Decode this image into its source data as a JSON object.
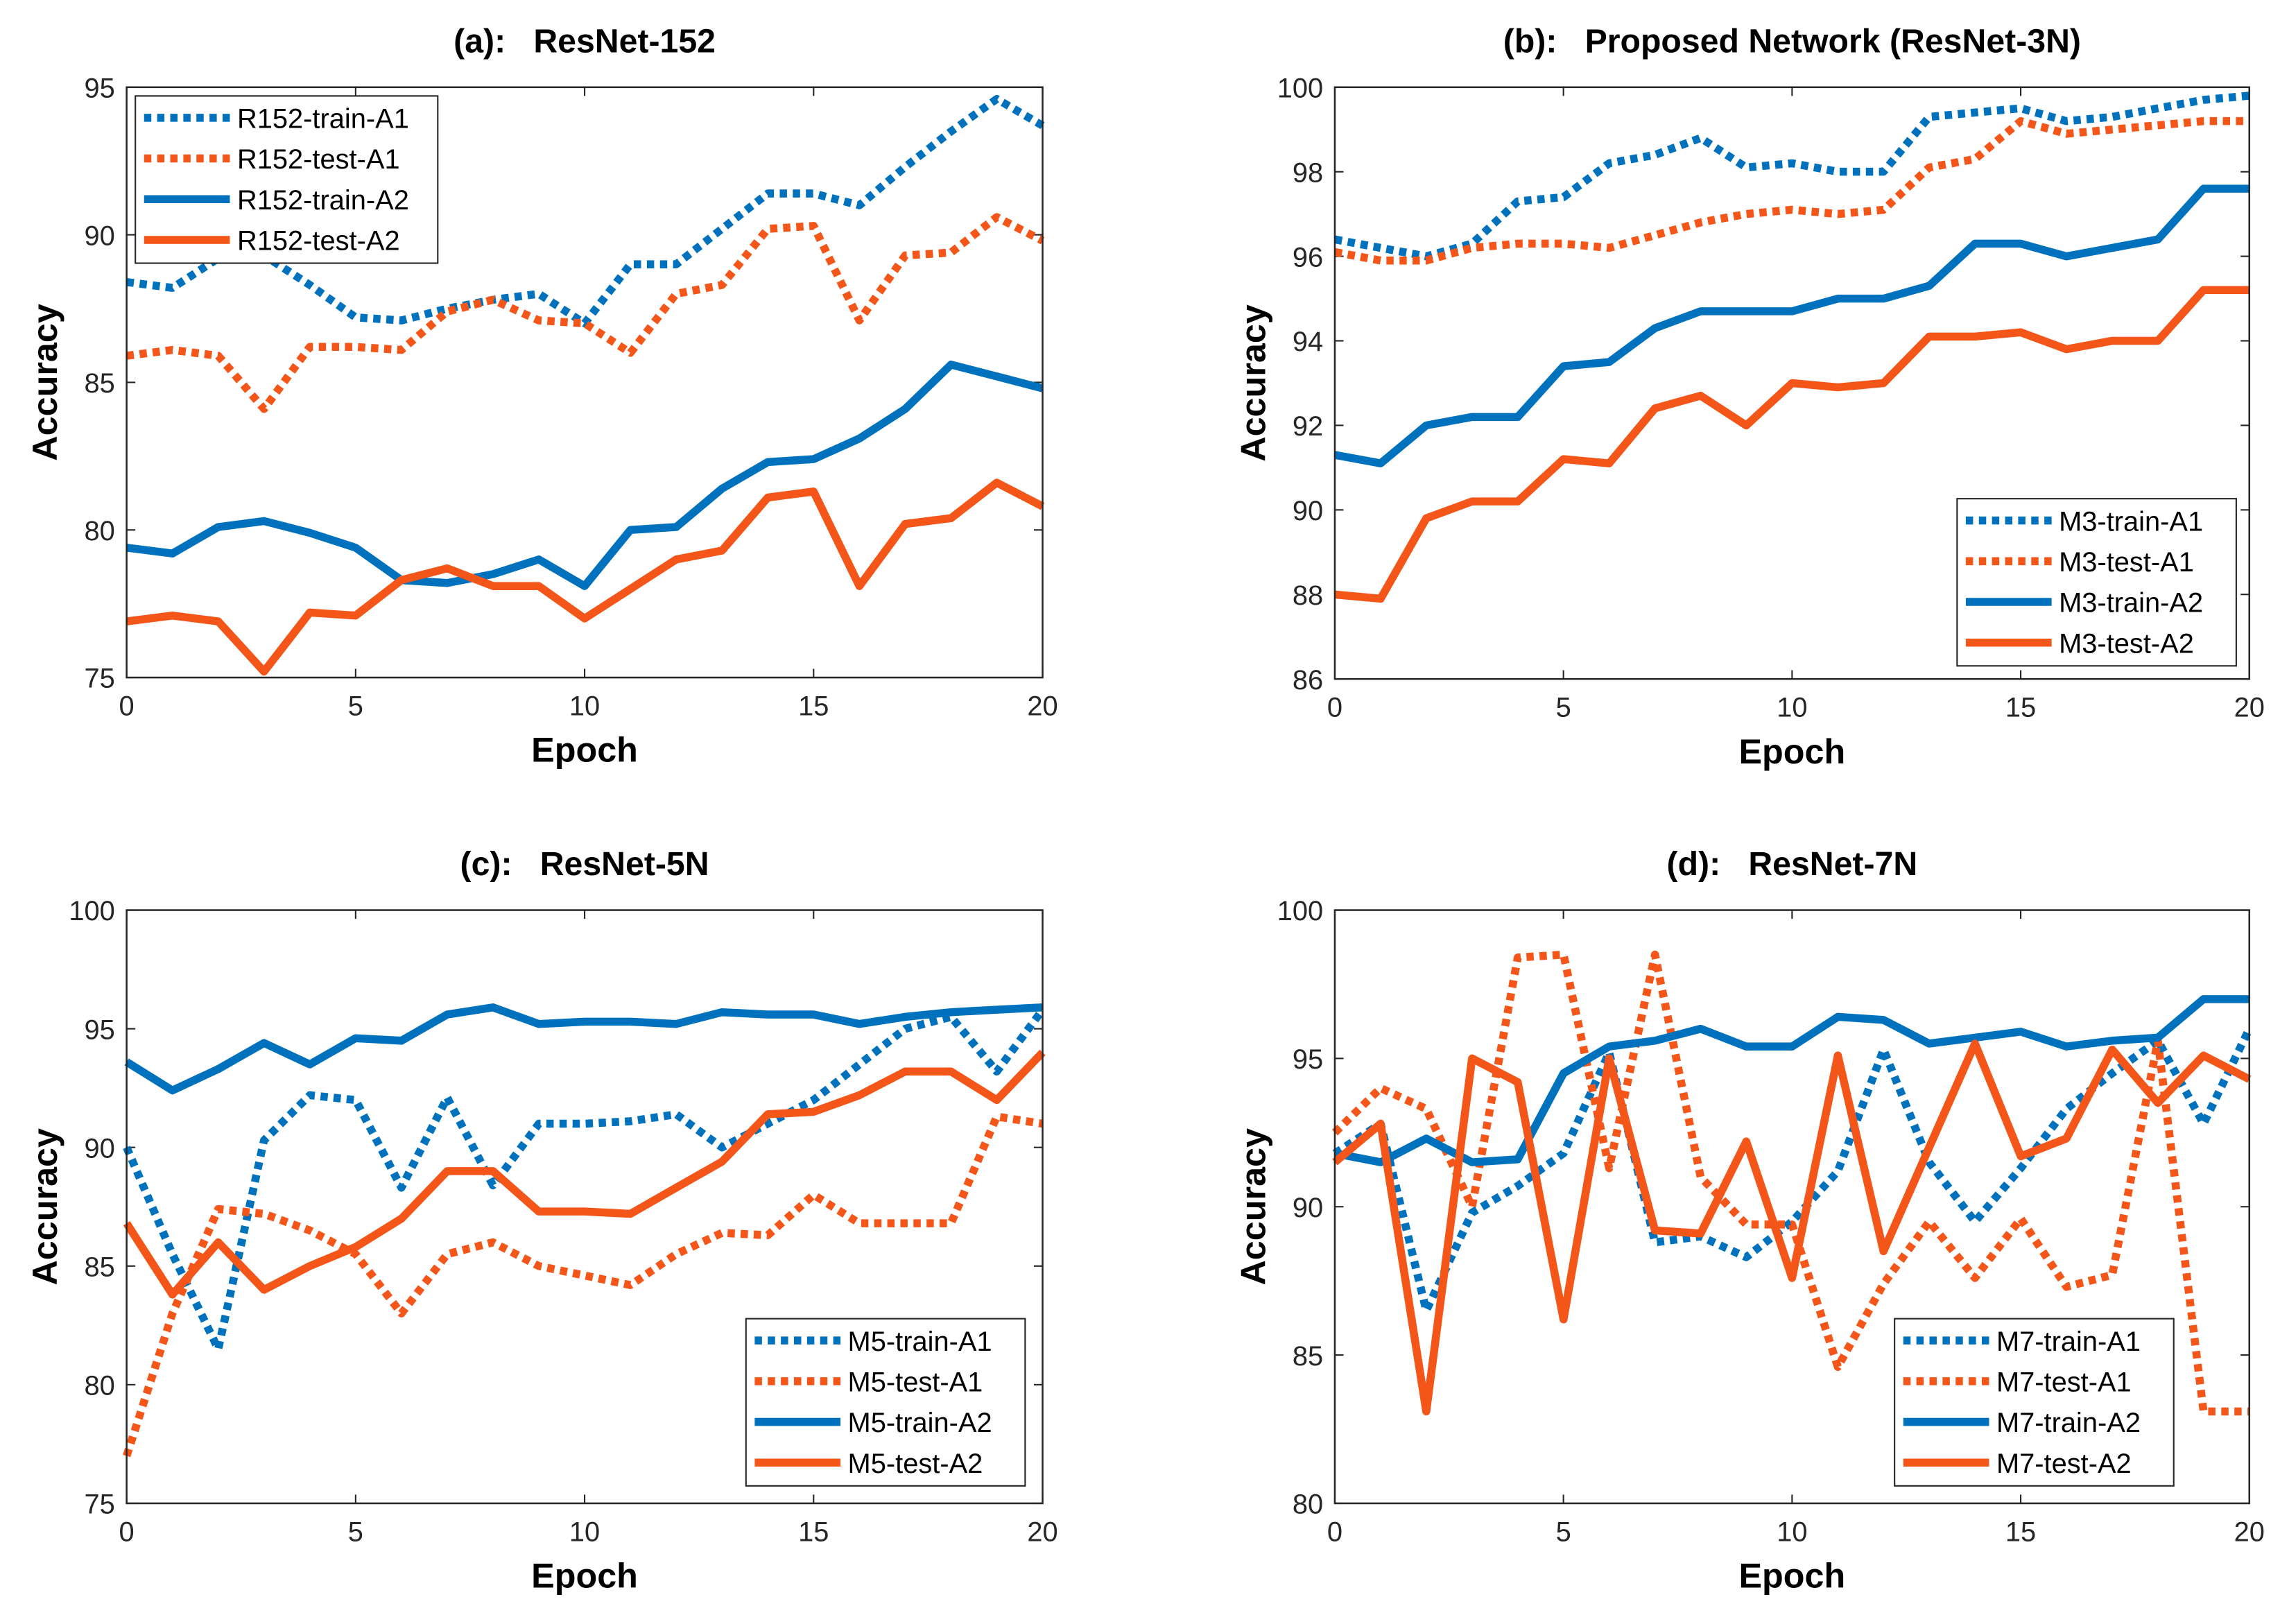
{
  "colors": {
    "blue": "#0072BD",
    "orange": "#F4561A"
  },
  "chart_data": [
    {
      "type": "line",
      "title": "(a):   ResNet-152",
      "xlabel": "Epoch",
      "ylabel": "Accuracy",
      "xlim": [
        0,
        20
      ],
      "ylim": [
        75,
        95
      ],
      "xticks": [
        0,
        5,
        10,
        15,
        20
      ],
      "yticks": [
        75,
        80,
        85,
        90,
        95
      ],
      "legend_position": "top-left",
      "x": [
        0,
        1,
        2,
        3,
        4,
        5,
        6,
        7,
        8,
        9,
        10,
        11,
        12,
        13,
        14,
        15,
        16,
        17,
        18,
        19,
        20
      ],
      "series": [
        {
          "name": "R152-train-A1",
          "style": "dotted",
          "color": "blue",
          "values": [
            88.4,
            88.2,
            89.2,
            89.3,
            88.3,
            87.2,
            87.1,
            87.5,
            87.8,
            88.0,
            87.0,
            89.0,
            89.0,
            90.2,
            91.4,
            91.4,
            91.0,
            92.3,
            93.5,
            94.6,
            93.7
          ]
        },
        {
          "name": "R152-test-A1",
          "style": "dotted",
          "color": "orange",
          "values": [
            85.9,
            86.1,
            85.9,
            84.1,
            86.2,
            86.2,
            86.1,
            87.4,
            87.8,
            87.1,
            87.0,
            86.0,
            88.0,
            88.3,
            90.2,
            90.3,
            87.1,
            89.3,
            89.4,
            90.6,
            89.8
          ]
        },
        {
          "name": "R152-train-A2",
          "style": "solid",
          "color": "blue",
          "values": [
            79.4,
            79.2,
            80.1,
            80.3,
            79.9,
            79.4,
            78.3,
            78.2,
            78.5,
            79.0,
            78.1,
            80.0,
            80.1,
            81.4,
            82.3,
            82.4,
            83.1,
            84.1,
            85.6,
            85.2,
            84.8
          ]
        },
        {
          "name": "R152-test-A2",
          "style": "solid",
          "color": "orange",
          "values": [
            76.9,
            77.1,
            76.9,
            75.2,
            77.2,
            77.1,
            78.3,
            78.7,
            78.1,
            78.1,
            77.0,
            78.0,
            79.0,
            79.3,
            81.1,
            81.3,
            78.1,
            80.2,
            80.4,
            81.6,
            80.8
          ]
        }
      ]
    },
    {
      "type": "line",
      "title": "(b):   Proposed Network (ResNet-3N)",
      "xlabel": "Epoch",
      "ylabel": "Accuracy",
      "xlim": [
        0,
        20
      ],
      "ylim": [
        86,
        100
      ],
      "xticks": [
        0,
        5,
        10,
        15,
        20
      ],
      "yticks": [
        86,
        88,
        90,
        92,
        94,
        96,
        98,
        100
      ],
      "legend_position": "bottom-right",
      "x": [
        0,
        1,
        2,
        3,
        4,
        5,
        6,
        7,
        8,
        9,
        10,
        11,
        12,
        13,
        14,
        15,
        16,
        17,
        18,
        19,
        20
      ],
      "series": [
        {
          "name": "M3-train-A1",
          "style": "dotted",
          "color": "blue",
          "values": [
            96.4,
            96.2,
            96.0,
            96.3,
            97.3,
            97.4,
            98.2,
            98.4,
            98.8,
            98.1,
            98.2,
            98.0,
            98.0,
            99.3,
            99.4,
            99.5,
            99.2,
            99.3,
            99.5,
            99.7,
            99.8
          ]
        },
        {
          "name": "M3-test-A1",
          "style": "dotted",
          "color": "orange",
          "values": [
            96.1,
            95.9,
            95.9,
            96.2,
            96.3,
            96.3,
            96.2,
            96.5,
            96.8,
            97.0,
            97.1,
            97.0,
            97.1,
            98.1,
            98.3,
            99.2,
            98.9,
            99.0,
            99.1,
            99.2,
            99.2
          ]
        },
        {
          "name": "M3-train-A2",
          "style": "solid",
          "color": "blue",
          "values": [
            91.3,
            91.1,
            92.0,
            92.2,
            92.2,
            93.4,
            93.5,
            94.3,
            94.7,
            94.7,
            94.7,
            95.0,
            95.0,
            95.3,
            96.3,
            96.3,
            96.0,
            96.2,
            96.4,
            97.6,
            97.6
          ]
        },
        {
          "name": "M3-test-A2",
          "style": "solid",
          "color": "orange",
          "values": [
            88.0,
            87.9,
            89.8,
            90.2,
            90.2,
            91.2,
            91.1,
            92.4,
            92.7,
            92.0,
            93.0,
            92.9,
            93.0,
            94.1,
            94.1,
            94.2,
            93.8,
            94.0,
            94.0,
            95.2,
            95.2
          ]
        }
      ]
    },
    {
      "type": "line",
      "title": "(c):   ResNet-5N",
      "xlabel": "Epoch",
      "ylabel": "Accuracy",
      "xlim": [
        0,
        20
      ],
      "ylim": [
        75,
        100
      ],
      "xticks": [
        0,
        5,
        10,
        15,
        20
      ],
      "yticks": [
        75,
        80,
        85,
        90,
        95,
        100
      ],
      "legend_position": "bottom-right",
      "x": [
        0,
        1,
        2,
        3,
        4,
        5,
        6,
        7,
        8,
        9,
        10,
        11,
        12,
        13,
        14,
        15,
        16,
        17,
        18,
        19,
        20
      ],
      "series": [
        {
          "name": "M5-train-A1",
          "style": "dotted",
          "color": "blue",
          "values": [
            90.0,
            85.5,
            81.5,
            90.3,
            92.2,
            92.0,
            88.3,
            92.1,
            88.4,
            91.0,
            91.0,
            91.1,
            91.4,
            90.0,
            91.0,
            92.0,
            93.5,
            95.0,
            95.5,
            93.2,
            95.8
          ]
        },
        {
          "name": "M5-test-A1",
          "style": "dotted",
          "color": "orange",
          "values": [
            77.0,
            83.0,
            87.4,
            87.2,
            86.5,
            85.5,
            83.0,
            85.5,
            86.0,
            85.0,
            84.6,
            84.2,
            85.5,
            86.4,
            86.3,
            88.0,
            86.8,
            86.8,
            86.8,
            91.3,
            91.0
          ]
        },
        {
          "name": "M5-train-A2",
          "style": "solid",
          "color": "blue",
          "values": [
            93.6,
            92.4,
            93.3,
            94.4,
            93.5,
            94.6,
            94.5,
            95.6,
            95.9,
            95.2,
            95.3,
            95.3,
            95.2,
            95.7,
            95.6,
            95.6,
            95.2,
            95.5,
            95.7,
            95.8,
            95.9
          ]
        },
        {
          "name": "M5-test-A2",
          "style": "solid",
          "color": "orange",
          "values": [
            86.8,
            83.8,
            86.0,
            84.0,
            85.0,
            85.8,
            87.0,
            89.0,
            89.0,
            87.3,
            87.3,
            87.2,
            88.3,
            89.4,
            91.4,
            91.5,
            92.2,
            93.2,
            93.2,
            92.0,
            94.0
          ]
        }
      ]
    },
    {
      "type": "line",
      "title": "(d):   ResNet-7N",
      "xlabel": "Epoch",
      "ylabel": "Accuracy",
      "xlim": [
        0,
        20
      ],
      "ylim": [
        80,
        100
      ],
      "xticks": [
        0,
        5,
        10,
        15,
        20
      ],
      "yticks": [
        80,
        85,
        90,
        95,
        100
      ],
      "legend_position": "bottom-right",
      "x": [
        0,
        1,
        2,
        3,
        4,
        5,
        6,
        7,
        8,
        9,
        10,
        11,
        12,
        13,
        14,
        15,
        16,
        17,
        18,
        19,
        20
      ],
      "series": [
        {
          "name": "M7-train-A1",
          "style": "dotted",
          "color": "blue",
          "values": [
            91.8,
            92.8,
            86.5,
            89.8,
            90.7,
            91.8,
            95.2,
            88.8,
            89.0,
            88.3,
            89.5,
            91.2,
            95.3,
            91.5,
            89.5,
            91.3,
            93.3,
            94.5,
            95.6,
            92.8,
            96.0
          ]
        },
        {
          "name": "M7-test-A1",
          "style": "dotted",
          "color": "orange",
          "values": [
            92.5,
            94.0,
            93.3,
            90.0,
            98.4,
            98.5,
            91.3,
            98.5,
            91.0,
            89.4,
            89.4,
            84.6,
            87.4,
            89.5,
            87.6,
            89.6,
            87.3,
            87.7,
            95.6,
            83.1,
            83.1
          ]
        },
        {
          "name": "M7-train-A2",
          "style": "solid",
          "color": "blue",
          "values": [
            91.8,
            91.5,
            92.3,
            91.5,
            91.6,
            94.5,
            95.4,
            95.6,
            96.0,
            95.4,
            95.4,
            96.4,
            96.3,
            95.5,
            95.7,
            95.9,
            95.4,
            95.6,
            95.7,
            97.0,
            97.0
          ]
        },
        {
          "name": "M7-test-A2",
          "style": "solid",
          "color": "orange",
          "values": [
            91.5,
            92.8,
            83.1,
            95.0,
            94.2,
            86.2,
            95.0,
            89.2,
            89.1,
            92.2,
            87.6,
            95.1,
            88.5,
            92.0,
            95.5,
            91.7,
            92.3,
            95.3,
            93.5,
            95.1,
            94.3
          ]
        }
      ]
    }
  ]
}
